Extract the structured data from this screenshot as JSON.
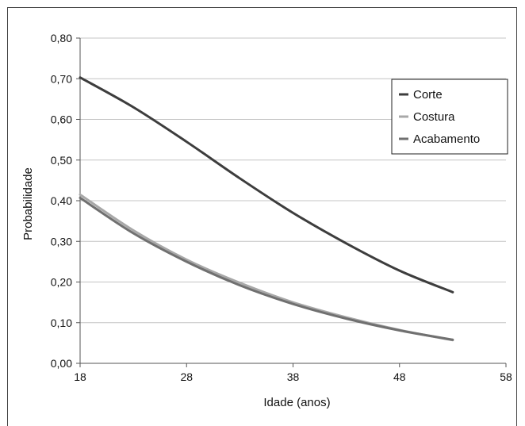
{
  "chart_data": {
    "type": "line",
    "xlabel": "Idade (anos)",
    "ylabel": "Probabilidade",
    "xlim": [
      18,
      58
    ],
    "ylim": [
      0,
      0.8
    ],
    "x_ticks": [
      18,
      28,
      38,
      48,
      58
    ],
    "x_tick_labels": [
      "18",
      "28",
      "38",
      "48",
      "58"
    ],
    "y_ticks": [
      0,
      0.1,
      0.2,
      0.3,
      0.4,
      0.5,
      0.6,
      0.7,
      0.8
    ],
    "y_tick_labels": [
      "0,00",
      "0,10",
      "0,20",
      "0,30",
      "0,40",
      "0,50",
      "0,60",
      "0,70",
      "0,80"
    ],
    "grid": "horizontal",
    "legend_position": "top-right",
    "series": [
      {
        "name": "Corte",
        "color": "#3d3d3d",
        "x": [
          18,
          23,
          28,
          33,
          38,
          43,
          48,
          53
        ],
        "y": [
          0.703,
          0.63,
          0.545,
          0.455,
          0.37,
          0.295,
          0.228,
          0.175
        ]
      },
      {
        "name": "Costura",
        "color": "#a8a8a8",
        "x": [
          18,
          23,
          28,
          33,
          38,
          43,
          48,
          53
        ],
        "y": [
          0.415,
          0.327,
          0.255,
          0.198,
          0.15,
          0.113,
          0.082,
          0.057
        ]
      },
      {
        "name": "Acabamento",
        "color": "#707070",
        "x": [
          18,
          23,
          28,
          33,
          38,
          43,
          48,
          53
        ],
        "y": [
          0.407,
          0.32,
          0.25,
          0.192,
          0.146,
          0.11,
          0.081,
          0.058
        ]
      }
    ]
  }
}
